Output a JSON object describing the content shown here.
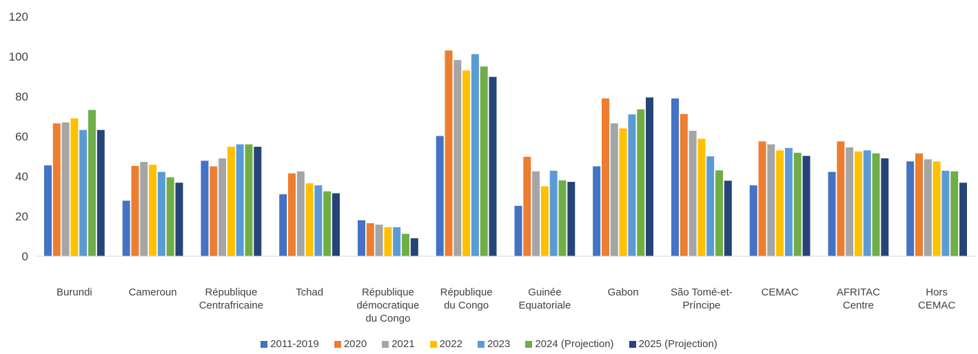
{
  "chart_data": {
    "type": "bar",
    "title": "",
    "xlabel": "",
    "ylabel": "",
    "ylim": [
      0,
      120
    ],
    "yticks": [
      0,
      20,
      40,
      60,
      80,
      100,
      120
    ],
    "grid": false,
    "legend_position": "bottom",
    "categories": [
      [
        "Burundi"
      ],
      [
        "Cameroun"
      ],
      [
        "République",
        "Centrafricaine"
      ],
      [
        "Tchad"
      ],
      [
        "République",
        "démocratique",
        "du Congo"
      ],
      [
        "République",
        "du Congo"
      ],
      [
        "Guinée",
        "Equatoriale"
      ],
      [
        "Gabon"
      ],
      [
        "São Tomé-et-",
        "Príncipe"
      ],
      [
        "CEMAC"
      ],
      [
        "AFRITAC",
        "Centre"
      ],
      [
        "Hors",
        "CEMAC"
      ]
    ],
    "series": [
      {
        "name": "2011-2019",
        "color": "#4472C4",
        "values": [
          45.5,
          27.8,
          47.8,
          31,
          18,
          60.2,
          25.2,
          45,
          79,
          35.5,
          42.2,
          47.5
        ]
      },
      {
        "name": "2020",
        "color": "#ED7D31",
        "values": [
          66.5,
          45.2,
          45,
          41.5,
          16.5,
          103,
          49.8,
          79,
          71.2,
          57.5,
          57.5,
          51.5
        ]
      },
      {
        "name": "2021",
        "color": "#A5A5A5",
        "values": [
          67,
          47.2,
          49,
          42.5,
          15.8,
          98.2,
          42.5,
          66.5,
          62.8,
          56,
          54.5,
          48.5
        ]
      },
      {
        "name": "2022",
        "color": "#FFC000",
        "values": [
          69,
          45.8,
          54.8,
          36.5,
          14.5,
          93,
          35,
          64,
          58.8,
          53,
          52.5,
          47.5
        ]
      },
      {
        "name": "2023",
        "color": "#5B9BD5",
        "values": [
          63.2,
          42.2,
          56,
          35.5,
          14.5,
          101.2,
          42.8,
          71,
          50,
          54.2,
          53,
          42.8
        ]
      },
      {
        "name": "2024 (Projection)",
        "color": "#70AD47",
        "values": [
          73.2,
          39.5,
          56,
          32.5,
          11.2,
          95,
          38,
          73.5,
          43,
          51.8,
          51.5,
          42.5
        ]
      },
      {
        "name": "2025 (Projection)",
        "color": "#264478",
        "values": [
          63.2,
          36.8,
          54.8,
          31.5,
          9,
          89.8,
          37.2,
          79.5,
          37.8,
          50.2,
          49,
          36.8
        ]
      }
    ]
  }
}
